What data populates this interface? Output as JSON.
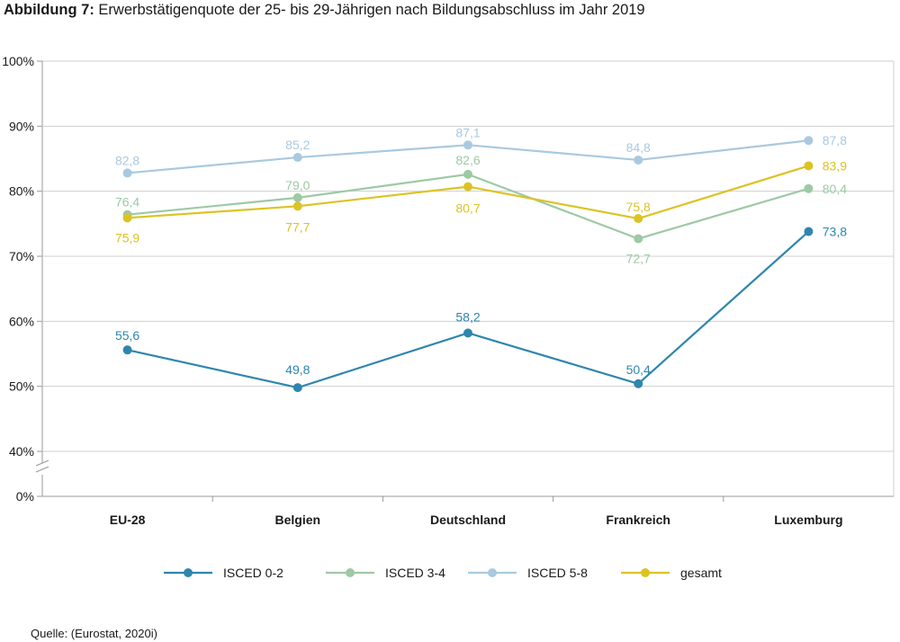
{
  "title": {
    "label": "Abbildung 7",
    "separator": ": ",
    "text": "Erwerbstätigenquote der 25- bis 29-Jährigen nach Bildungsabschluss im Jahr 2019"
  },
  "source": "Quelle: (Eurostat, 2020i)",
  "colors": {
    "ISCED 0-2": "#2f86ad",
    "ISCED 3-4": "#9dc9a4",
    "ISCED 5-8": "#a9c9e0",
    "gesamt": "#dcc324",
    "grid": "#cfcfcf",
    "axis": "#9a9a9a"
  },
  "chart_data": {
    "type": "line",
    "title": "Erwerbstätigenquote der 25- bis 29-Jährigen nach Bildungsabschluss im Jahr 2019",
    "xlabel": "",
    "ylabel": "",
    "categories": [
      "EU-28",
      "Belgien",
      "Deutschland",
      "Frankreich",
      "Luxemburg"
    ],
    "y_ticks": [
      "100%",
      "90%",
      "80%",
      "70%",
      "60%",
      "50%",
      "40%",
      "0%"
    ],
    "ylim": [
      40,
      100
    ],
    "axis_break": "between 40% and 0%",
    "grid": true,
    "legend_position": "bottom",
    "series": [
      {
        "name": "ISCED 0-2",
        "values": [
          55.6,
          49.8,
          58.2,
          50.4,
          73.8
        ],
        "labels": [
          "55,6",
          "49,8",
          "58,2",
          "50,4",
          "73,8"
        ]
      },
      {
        "name": "ISCED 3-4",
        "values": [
          76.4,
          79.0,
          82.6,
          72.7,
          80.4
        ],
        "labels": [
          "76,4",
          "79,0",
          "82,6",
          "72,7",
          "80,4"
        ]
      },
      {
        "name": "ISCED 5-8",
        "values": [
          82.8,
          85.2,
          87.1,
          84.8,
          87.8
        ],
        "labels": [
          "82,8",
          "85,2",
          "87,1",
          "84,8",
          "87,8"
        ]
      },
      {
        "name": "gesamt",
        "values": [
          75.9,
          77.7,
          80.7,
          75.8,
          83.9
        ],
        "labels": [
          "75,9",
          "77,7",
          "80,7",
          "75,8",
          "83,9"
        ]
      }
    ]
  }
}
